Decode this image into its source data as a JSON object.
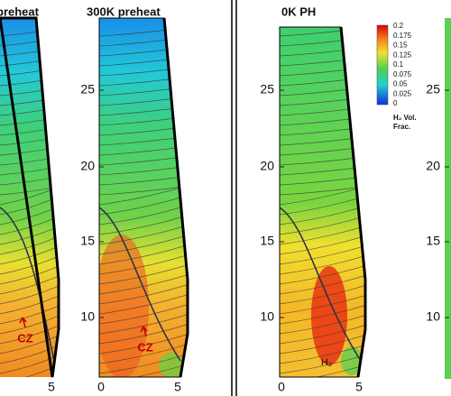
{
  "panels": [
    {
      "title": "preheat",
      "xticks": [
        "5"
      ],
      "annotations": [
        "CZ"
      ]
    },
    {
      "title": "300K preheat",
      "yticks": [
        "25",
        "20",
        "15",
        "10"
      ],
      "xticks": [
        "0",
        "5"
      ],
      "annotations": [
        "CZ"
      ]
    },
    {
      "title": "0K PH",
      "yticks": [
        "25",
        "20",
        "15",
        "10"
      ],
      "xticks": [
        "0",
        "5"
      ],
      "annotations": [
        "H₂"
      ]
    },
    {
      "yticks": [
        "25",
        "20",
        "15",
        "10"
      ]
    }
  ],
  "colorbar": {
    "ticks": [
      "0.2",
      "0.175",
      "0.15",
      "0.125",
      "0.1",
      "0.075",
      "0.05",
      "0.025",
      "0"
    ],
    "label": [
      "H₂ Vol.",
      "Frac."
    ]
  }
}
